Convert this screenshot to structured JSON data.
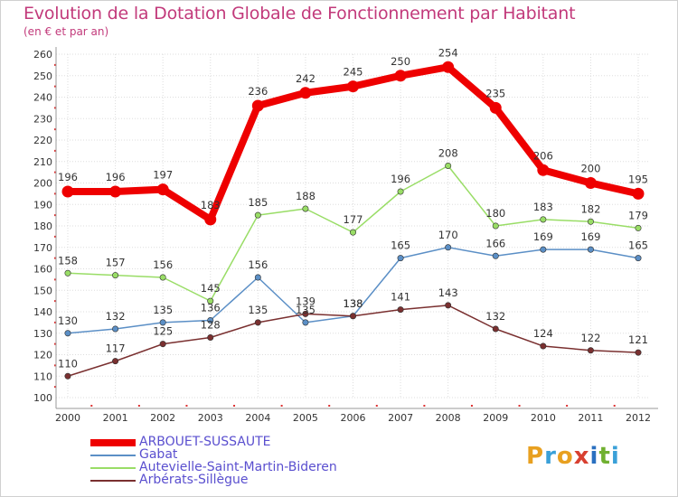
{
  "header": {
    "title": "Evolution de la Dotation Globale de Fonctionnement par Habitant",
    "subtitle": "(en € et par an)"
  },
  "logo": {
    "letters": [
      "P",
      "r",
      "o",
      "x",
      "i",
      "t",
      "i"
    ],
    "colors": [
      "#e8a020",
      "#3aa0d8",
      "#e8a020",
      "#d84030",
      "#2a70c0",
      "#70b030",
      "#3aa0d8"
    ]
  },
  "chart_data": {
    "type": "line",
    "title": "Evolution de la Dotation Globale de Fonctionnement par Habitant",
    "subtitle": "(en € et par an)",
    "x": [
      "2000",
      "2001",
      "2002",
      "2003",
      "2004",
      "2005",
      "2006",
      "2007",
      "2008",
      "2009",
      "2010",
      "2011",
      "2012"
    ],
    "ylim": [
      100,
      260
    ],
    "yticks": [
      "100",
      "110",
      "120",
      "130",
      "140",
      "150",
      "160",
      "170",
      "180",
      "190",
      "200",
      "210",
      "220",
      "230",
      "240",
      "250",
      "260"
    ],
    "grid": true,
    "legend": "bottom-left",
    "series": [
      {
        "name": "ARBOUET-SUSSAUTE",
        "color": "#ee0000",
        "text_color": "#5a4fcf",
        "values": [
          196,
          196,
          197,
          183,
          236,
          242,
          245,
          250,
          254,
          235,
          206,
          200,
          195
        ],
        "labels": [
          "196",
          "196",
          "197",
          "183",
          "236",
          "242",
          "245",
          "250",
          "254",
          "235",
          "206",
          "200",
          "195"
        ]
      },
      {
        "name": "Gabat",
        "color": "#5b8fc6",
        "text_color": "#5a4fcf",
        "values": [
          130,
          132,
          135,
          136,
          156,
          135,
          138,
          165,
          170,
          166,
          169,
          169,
          165
        ],
        "labels": [
          "130",
          "132",
          "135",
          "136",
          "156",
          "135",
          "138",
          "165",
          "170",
          "166",
          "169",
          "169",
          "165"
        ]
      },
      {
        "name": "Autevielle-Saint-Martin-Bideren",
        "color": "#99dd66",
        "text_color": "#5a4fcf",
        "values": [
          158,
          157,
          156,
          145,
          185,
          188,
          177,
          196,
          208,
          180,
          183,
          182,
          179
        ],
        "labels": [
          "158",
          "157",
          "156",
          "145",
          "185",
          "188",
          "177",
          "196",
          "208",
          "180",
          "183",
          "182",
          "179"
        ]
      },
      {
        "name": "Arbérats-Sillègue",
        "color": "#7a3030",
        "text_color": "#5a4fcf",
        "values": [
          110,
          117,
          125,
          128,
          135,
          139,
          138,
          141,
          143,
          132,
          124,
          122,
          121
        ],
        "labels": [
          "110",
          "117",
          "125",
          "128",
          "135",
          "139",
          "138",
          "141",
          "143",
          "132",
          "124",
          "122",
          "121"
        ]
      }
    ]
  }
}
